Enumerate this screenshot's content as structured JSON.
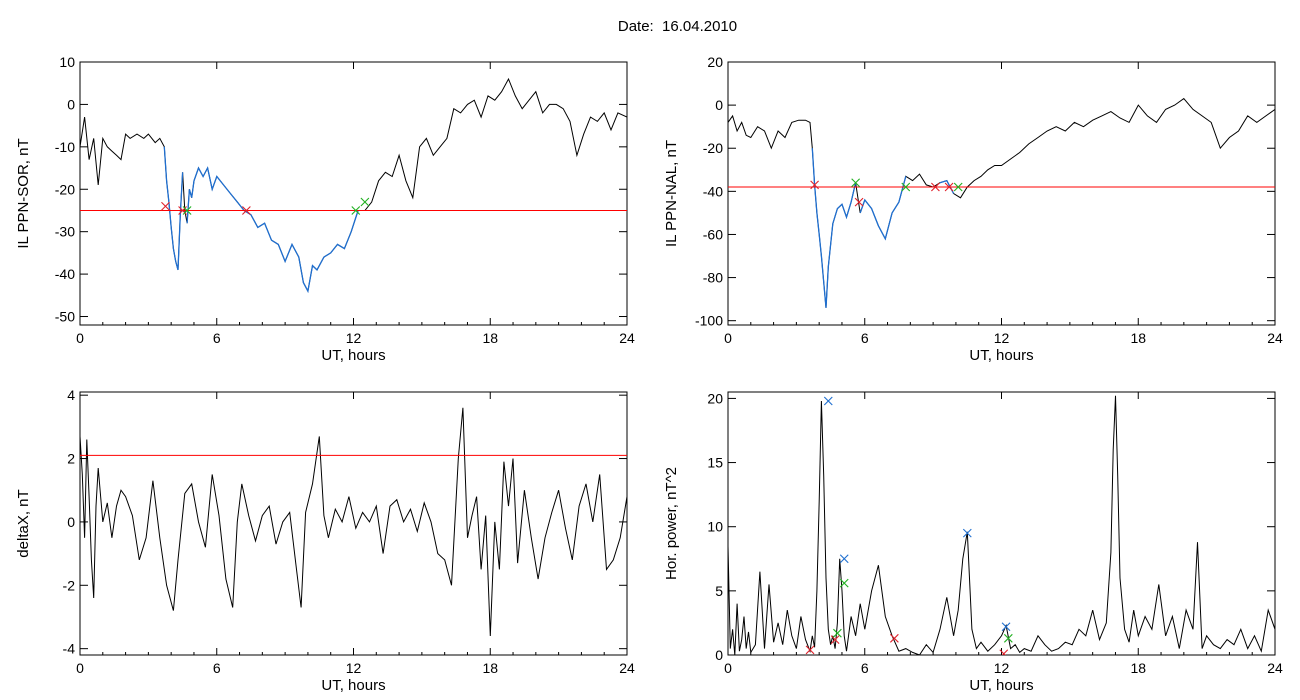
{
  "figure": {
    "title": "Date:  16.04.2010"
  },
  "colors": {
    "data": "#000000",
    "threshold": "#ff0000",
    "segment": "#1f6fd0",
    "marker_start": "#e0202a",
    "marker_end": "#20b020",
    "marker_peak": "#1f6fd0"
  },
  "chart_data": [
    {
      "id": "sor",
      "type": "line",
      "xlabel": "UT, hours",
      "ylabel": "IL PPN-SOR, nT",
      "xlim": [
        0,
        24
      ],
      "ylim": [
        -52,
        10
      ],
      "xticks": [
        0,
        6,
        12,
        18,
        24
      ],
      "yticks": [
        10,
        0,
        -10,
        -20,
        -30,
        -40,
        -50
      ],
      "threshold": -25,
      "series": [
        {
          "x": [
            0,
            0.2,
            0.4,
            0.6,
            0.8,
            1.0,
            1.2,
            1.4,
            1.6,
            1.8,
            2.0,
            2.2,
            2.5,
            2.8,
            3.0,
            3.3,
            3.5,
            3.7,
            3.8,
            3.9,
            4.0,
            4.1,
            4.2,
            4.3,
            4.4,
            4.5,
            4.6,
            4.7,
            4.8,
            4.9,
            5.0,
            5.2,
            5.4,
            5.6,
            5.8,
            6.0,
            6.3,
            6.6,
            6.9,
            7.2,
            7.5,
            7.8,
            8.1,
            8.4,
            8.7,
            9.0,
            9.3,
            9.6,
            9.8,
            10.0,
            10.2,
            10.4,
            10.7,
            11.0,
            11.3,
            11.6,
            11.9,
            12.2,
            12.5,
            12.8,
            13.1,
            13.4,
            13.7,
            14.0,
            14.3,
            14.6,
            14.9,
            15.2,
            15.5,
            15.8,
            16.1,
            16.4,
            16.7,
            17.0,
            17.3,
            17.6,
            17.9,
            18.2,
            18.5,
            18.8,
            19.1,
            19.4,
            19.7,
            20.0,
            20.3,
            20.6,
            20.9,
            21.2,
            21.5,
            21.8,
            22.1,
            22.4,
            22.7,
            23.0,
            23.3,
            23.6,
            24.0
          ],
          "y": [
            -10,
            -3,
            -13,
            -8,
            -19,
            -8,
            -10,
            -11,
            -12,
            -13,
            -7,
            -8,
            -7,
            -8,
            -7,
            -9,
            -8,
            -10,
            -18,
            -23,
            -29,
            -34,
            -37,
            -39,
            -26,
            -16,
            -25,
            -28,
            -20,
            -22,
            -18,
            -15,
            -17,
            -15,
            -20,
            -17,
            -19,
            -21,
            -23,
            -25,
            -26,
            -29,
            -28,
            -32,
            -33,
            -37,
            -33,
            -36,
            -42,
            -44,
            -38,
            -39,
            -36,
            -35,
            -33,
            -34,
            -30,
            -25,
            -25,
            -23,
            -18,
            -16,
            -17,
            -12,
            -18,
            -22,
            -10,
            -8,
            -12,
            -10,
            -8,
            -1,
            -2,
            0,
            1,
            -3,
            2,
            1,
            3,
            6,
            2,
            -1,
            1,
            3,
            -2,
            0,
            0,
            -1,
            -4,
            -12,
            -7,
            -3,
            -4,
            -2,
            -6,
            -2,
            -3
          ]
        }
      ],
      "segments": [
        [
          3.7,
          4.5
        ],
        [
          4.7,
          12.3
        ]
      ],
      "markers": [
        {
          "x": 3.75,
          "y": -24,
          "kind": "start"
        },
        {
          "x": 4.5,
          "y": -25,
          "kind": "start"
        },
        {
          "x": 4.7,
          "y": -25,
          "kind": "end"
        },
        {
          "x": 7.3,
          "y": -25,
          "kind": "start"
        },
        {
          "x": 12.1,
          "y": -25,
          "kind": "end"
        },
        {
          "x": 12.5,
          "y": -23,
          "kind": "end"
        }
      ]
    },
    {
      "id": "nal",
      "type": "line",
      "xlabel": "UT, hours",
      "ylabel": "IL PPN-NAL, nT",
      "xlim": [
        0,
        24
      ],
      "ylim": [
        -102,
        20
      ],
      "xticks": [
        0,
        6,
        12,
        18,
        24
      ],
      "yticks": [
        20,
        0,
        -20,
        -40,
        -60,
        -80,
        -100
      ],
      "threshold": -38,
      "series": [
        {
          "x": [
            0,
            0.2,
            0.4,
            0.6,
            0.8,
            1.0,
            1.3,
            1.6,
            1.9,
            2.2,
            2.5,
            2.8,
            3.1,
            3.4,
            3.6,
            3.7,
            3.8,
            3.9,
            4.0,
            4.1,
            4.2,
            4.3,
            4.4,
            4.6,
            4.8,
            5.0,
            5.2,
            5.4,
            5.6,
            5.8,
            6.0,
            6.3,
            6.6,
            6.9,
            7.2,
            7.5,
            7.8,
            8.1,
            8.4,
            8.7,
            9.0,
            9.3,
            9.6,
            9.9,
            10.2,
            10.5,
            10.8,
            11.1,
            11.4,
            11.7,
            12.0,
            12.4,
            12.8,
            13.2,
            13.6,
            14.0,
            14.4,
            14.8,
            15.2,
            15.6,
            16.0,
            16.4,
            16.8,
            17.2,
            17.6,
            18.0,
            18.4,
            18.8,
            19.2,
            19.6,
            20.0,
            20.4,
            20.8,
            21.2,
            21.6,
            22.0,
            22.4,
            22.8,
            23.2,
            23.6,
            24.0
          ],
          "y": [
            -8,
            -5,
            -12,
            -8,
            -14,
            -15,
            -10,
            -12,
            -20,
            -12,
            -15,
            -8,
            -7,
            -7,
            -8,
            -20,
            -37,
            -50,
            -60,
            -70,
            -82,
            -94,
            -75,
            -55,
            -48,
            -46,
            -52,
            -45,
            -36,
            -50,
            -44,
            -48,
            -56,
            -62,
            -50,
            -45,
            -33,
            -35,
            -32,
            -37,
            -38,
            -36,
            -35,
            -41,
            -43,
            -38,
            -35,
            -33,
            -30,
            -28,
            -28,
            -25,
            -22,
            -18,
            -15,
            -12,
            -10,
            -12,
            -8,
            -10,
            -7,
            -5,
            -3,
            -6,
            -8,
            0,
            -5,
            -8,
            -2,
            0,
            3,
            -2,
            -5,
            -8,
            -20,
            -15,
            -12,
            -5,
            -8,
            -5,
            -2
          ]
        }
      ],
      "segments": [
        [
          3.7,
          5.6
        ],
        [
          5.7,
          7.8
        ],
        [
          9.1,
          10.1
        ]
      ],
      "markers": [
        {
          "x": 3.8,
          "y": -37,
          "kind": "start"
        },
        {
          "x": 5.6,
          "y": -36,
          "kind": "end"
        },
        {
          "x": 5.75,
          "y": -45,
          "kind": "start"
        },
        {
          "x": 7.8,
          "y": -38,
          "kind": "end"
        },
        {
          "x": 9.1,
          "y": -38,
          "kind": "start"
        },
        {
          "x": 9.7,
          "y": -38,
          "kind": "start"
        },
        {
          "x": 10.1,
          "y": -38,
          "kind": "end"
        }
      ]
    },
    {
      "id": "deltax",
      "type": "line",
      "xlabel": "UT, hours",
      "ylabel": "deltaX, nT",
      "xlim": [
        0,
        24
      ],
      "ylim": [
        -4.2,
        4.1
      ],
      "xticks": [
        0,
        6,
        12,
        18,
        24
      ],
      "yticks": [
        4,
        2,
        0,
        -2,
        -4
      ],
      "threshold": 2.1,
      "series": [
        {
          "x": [
            0,
            0.1,
            0.2,
            0.3,
            0.4,
            0.5,
            0.6,
            0.7,
            0.8,
            1.0,
            1.2,
            1.4,
            1.6,
            1.8,
            2.0,
            2.3,
            2.6,
            2.9,
            3.2,
            3.5,
            3.8,
            4.1,
            4.3,
            4.6,
            4.9,
            5.2,
            5.5,
            5.8,
            6.1,
            6.4,
            6.7,
            6.9,
            7.1,
            7.4,
            7.7,
            8.0,
            8.3,
            8.6,
            8.9,
            9.2,
            9.5,
            9.7,
            9.9,
            10.2,
            10.5,
            10.7,
            10.9,
            11.2,
            11.5,
            11.8,
            12.1,
            12.4,
            12.7,
            13.0,
            13.3,
            13.6,
            13.9,
            14.2,
            14.5,
            14.8,
            15.1,
            15.4,
            15.7,
            16.0,
            16.3,
            16.6,
            16.8,
            17.0,
            17.2,
            17.4,
            17.6,
            17.8,
            18.0,
            18.2,
            18.4,
            18.6,
            18.8,
            19.0,
            19.2,
            19.5,
            19.8,
            20.1,
            20.4,
            20.7,
            21.0,
            21.3,
            21.6,
            21.9,
            22.2,
            22.5,
            22.8,
            23.1,
            23.4,
            23.7,
            24.0
          ],
          "y": [
            2.7,
            1.5,
            -0.5,
            2.6,
            0.8,
            -1.2,
            -2.4,
            0.5,
            1.7,
            0.0,
            0.6,
            -0.5,
            0.5,
            1.0,
            0.8,
            0.2,
            -1.2,
            -0.5,
            1.3,
            -0.5,
            -2.0,
            -2.8,
            -1.2,
            0.9,
            1.2,
            0.0,
            -0.8,
            1.5,
            0.2,
            -1.8,
            -2.7,
            0.0,
            1.2,
            0.2,
            -0.6,
            0.2,
            0.5,
            -0.7,
            0.0,
            0.3,
            -1.5,
            -2.7,
            0.3,
            1.2,
            2.7,
            0.2,
            -0.5,
            0.4,
            0.0,
            0.8,
            -0.2,
            0.3,
            0.0,
            0.5,
            -1.0,
            0.5,
            0.7,
            0.0,
            0.4,
            -0.3,
            0.6,
            0.0,
            -1.0,
            -1.2,
            -2.0,
            2.0,
            3.6,
            -0.5,
            0.2,
            0.8,
            -1.5,
            0.2,
            -3.6,
            0.0,
            -1.5,
            1.9,
            0.5,
            2.0,
            -1.3,
            1.0,
            -0.5,
            -1.8,
            -0.5,
            0.3,
            1.0,
            -0.2,
            -1.2,
            0.5,
            1.2,
            0.0,
            1.5,
            -1.5,
            -1.2,
            -0.5,
            0.8
          ]
        }
      ]
    },
    {
      "id": "power",
      "type": "line",
      "xlabel": "UT, hours",
      "ylabel": "Hor. power, nT^2",
      "xlim": [
        0,
        24
      ],
      "ylim": [
        0,
        20.5
      ],
      "xticks": [
        0,
        6,
        12,
        18,
        24
      ],
      "yticks": [
        20,
        15,
        10,
        5,
        0
      ],
      "series": [
        {
          "x": [
            0,
            0.1,
            0.2,
            0.3,
            0.4,
            0.5,
            0.6,
            0.7,
            0.8,
            0.9,
            1.0,
            1.2,
            1.4,
            1.6,
            1.8,
            2.0,
            2.2,
            2.4,
            2.6,
            2.8,
            3.0,
            3.2,
            3.4,
            3.6,
            3.7,
            3.8,
            3.9,
            4.0,
            4.1,
            4.2,
            4.3,
            4.4,
            4.5,
            4.6,
            4.7,
            4.8,
            4.9,
            5.0,
            5.1,
            5.2,
            5.4,
            5.6,
            5.8,
            6.0,
            6.3,
            6.6,
            6.9,
            7.2,
            7.5,
            7.8,
            8.1,
            8.4,
            8.7,
            9.0,
            9.3,
            9.6,
            9.9,
            10.1,
            10.3,
            10.5,
            10.7,
            10.9,
            11.1,
            11.4,
            11.7,
            12.0,
            12.2,
            12.4,
            12.6,
            12.8,
            13.0,
            13.3,
            13.6,
            13.9,
            14.2,
            14.5,
            14.8,
            15.1,
            15.4,
            15.7,
            16.0,
            16.3,
            16.6,
            16.8,
            16.9,
            17.0,
            17.1,
            17.2,
            17.4,
            17.6,
            17.8,
            18.0,
            18.3,
            18.6,
            18.9,
            19.2,
            19.5,
            19.8,
            20.1,
            20.4,
            20.6,
            20.8,
            21.0,
            21.3,
            21.6,
            21.9,
            22.2,
            22.5,
            22.8,
            23.1,
            23.4,
            23.7,
            24.0
          ],
          "y": [
            8.5,
            0.5,
            2.0,
            0.0,
            4.0,
            0.3,
            1.2,
            3.0,
            0.5,
            1.8,
            0.2,
            0.8,
            6.5,
            0.5,
            5.5,
            1.0,
            2.5,
            0.8,
            3.5,
            1.5,
            0.5,
            3.0,
            1.2,
            0.3,
            1.5,
            0.6,
            5.0,
            12.0,
            19.8,
            14.0,
            6.0,
            2.0,
            0.8,
            1.5,
            0.5,
            2.5,
            7.5,
            5.0,
            1.5,
            0.3,
            3.0,
            1.5,
            4.0,
            2.0,
            5.0,
            7.0,
            3.0,
            1.5,
            0.3,
            0.5,
            0.2,
            0.0,
            0.8,
            0.2,
            2.0,
            4.5,
            1.5,
            3.5,
            7.5,
            9.6,
            2.0,
            0.5,
            1.0,
            0.3,
            0.8,
            1.5,
            2.3,
            0.5,
            0.8,
            0.2,
            0.5,
            0.3,
            1.5,
            0.8,
            0.3,
            0.5,
            1.0,
            0.8,
            2.0,
            1.5,
            3.5,
            1.2,
            2.5,
            8.0,
            16.0,
            20.2,
            14.0,
            6.0,
            2.0,
            1.0,
            3.5,
            1.5,
            3.0,
            2.0,
            5.5,
            1.5,
            3.0,
            0.5,
            3.5,
            2.0,
            8.8,
            0.5,
            1.5,
            0.8,
            0.5,
            1.2,
            0.8,
            2.0,
            0.5,
            1.5,
            0.3,
            3.5,
            2.0
          ]
        }
      ],
      "markers": [
        {
          "x": 3.6,
          "y": 0.4,
          "kind": "start"
        },
        {
          "x": 4.4,
          "y": 19.8,
          "kind": "peak"
        },
        {
          "x": 4.7,
          "y": 1.2,
          "kind": "start"
        },
        {
          "x": 4.8,
          "y": 1.7,
          "kind": "end"
        },
        {
          "x": 5.1,
          "y": 7.5,
          "kind": "peak"
        },
        {
          "x": 5.1,
          "y": 5.6,
          "kind": "end"
        },
        {
          "x": 7.3,
          "y": 1.3,
          "kind": "start"
        },
        {
          "x": 10.5,
          "y": 9.5,
          "kind": "peak"
        },
        {
          "x": 12.1,
          "y": 0.1,
          "kind": "start"
        },
        {
          "x": 12.2,
          "y": 2.2,
          "kind": "peak"
        },
        {
          "x": 12.3,
          "y": 1.3,
          "kind": "end"
        }
      ]
    }
  ]
}
